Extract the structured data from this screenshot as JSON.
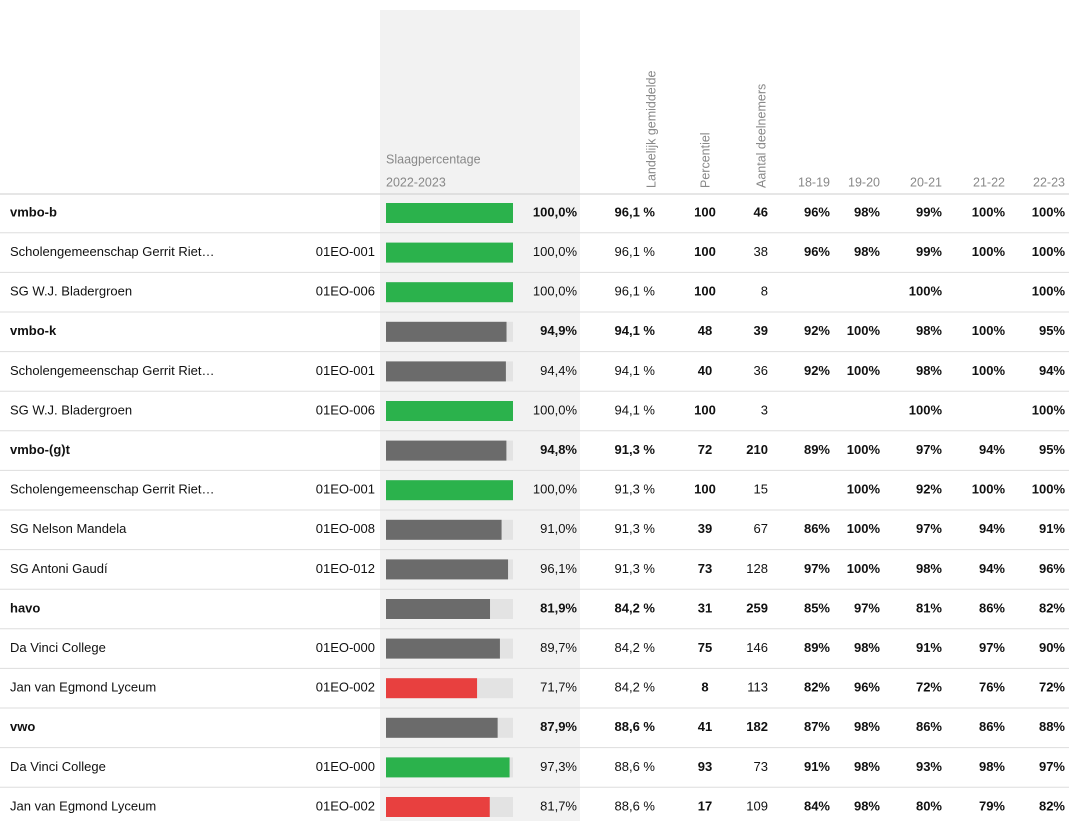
{
  "header": {
    "pass_title": "Slaagpercentage",
    "pass_period": "2022-2023",
    "average": "Landelijk gemiddelde",
    "percentile": "Percentiel",
    "participants": "Aantal deelnemers",
    "years": [
      "18-19",
      "19-20",
      "20-21",
      "21-22",
      "22-23"
    ]
  },
  "table": {
    "bar_range": [
      0,
      100
    ],
    "track_color": "#e3e3e3",
    "rows": [
      {
        "name": "vmbo-b",
        "group": true,
        "pass": 100.0,
        "pass_label": "100,0%",
        "bar_color": "#2bb24c",
        "average": "96,1 %",
        "percentile": 100,
        "percentile_color": "#2bb24c",
        "participants": 46,
        "years": [
          "96%",
          "98%",
          "99%",
          "100%",
          "100%"
        ],
        "year_colors": [
          "#e8403f",
          "#e8403f",
          "#e8403f",
          "#2bb24c",
          "#2bb24c"
        ]
      },
      {
        "name": "Scholengemeenschap Gerrit Riet…",
        "code": "01EO-001",
        "pass": 100.0,
        "pass_label": "100,0%",
        "bar_color": "#2bb24c",
        "average": "96,1 %",
        "percentile": 100,
        "percentile_color": "#2bb24c",
        "participants": 38,
        "years": [
          "96%",
          "98%",
          "99%",
          "100%",
          "100%"
        ],
        "year_colors": [
          "#e8403f",
          "#e8403f",
          "#e8403f",
          "#2bb24c",
          "#2bb24c"
        ]
      },
      {
        "name": "SG W.J. Bladergroen",
        "code": "01EO-006",
        "pass": 100.0,
        "pass_label": "100,0%",
        "bar_color": "#2bb24c",
        "average": "96,1 %",
        "percentile": 100,
        "percentile_color": "#2bb24c",
        "participants": 8,
        "years": [
          null,
          null,
          "100%",
          null,
          "100%"
        ],
        "year_colors": [
          null,
          null,
          "#2bb24c",
          null,
          "#2bb24c"
        ]
      },
      {
        "name": "vmbo-k",
        "group": true,
        "pass": 94.9,
        "pass_label": "94,9%",
        "bar_color": "#6b6b6b",
        "average": "94,1 %",
        "percentile": 48,
        "percentile_color": "#777777",
        "participants": 39,
        "years": [
          "92%",
          "100%",
          "98%",
          "100%",
          "95%"
        ],
        "year_colors": [
          "#e8403f",
          "#2bb24c",
          "#e8403f",
          "#2bb24c",
          "#777777"
        ]
      },
      {
        "name": "Scholengemeenschap Gerrit Riet…",
        "code": "01EO-001",
        "pass": 94.4,
        "pass_label": "94,4%",
        "bar_color": "#6b6b6b",
        "average": "94,1 %",
        "percentile": 40,
        "percentile_color": "#777777",
        "participants": 36,
        "years": [
          "92%",
          "100%",
          "98%",
          "100%",
          "94%"
        ],
        "year_colors": [
          "#e8403f",
          "#2bb24c",
          "#e8403f",
          "#2bb24c",
          "#777777"
        ]
      },
      {
        "name": "SG W.J. Bladergroen",
        "code": "01EO-006",
        "pass": 100.0,
        "pass_label": "100,0%",
        "bar_color": "#2bb24c",
        "average": "94,1 %",
        "percentile": 100,
        "percentile_color": "#2bb24c",
        "participants": 3,
        "years": [
          null,
          null,
          "100%",
          null,
          "100%"
        ],
        "year_colors": [
          null,
          null,
          "#2bb24c",
          null,
          "#2bb24c"
        ]
      },
      {
        "name": "vmbo-(g)t",
        "group": true,
        "pass": 94.8,
        "pass_label": "94,8%",
        "bar_color": "#6b6b6b",
        "average": "91,3 %",
        "percentile": 72,
        "percentile_color": "#777777",
        "participants": 210,
        "years": [
          "89%",
          "100%",
          "97%",
          "94%",
          "95%"
        ],
        "year_colors": [
          "#e8403f",
          "#2bb24c",
          "#777777",
          "#777777",
          "#777777"
        ]
      },
      {
        "name": "Scholengemeenschap Gerrit Riet…",
        "code": "01EO-001",
        "pass": 100.0,
        "pass_label": "100,0%",
        "bar_color": "#2bb24c",
        "average": "91,3 %",
        "percentile": 100,
        "percentile_color": "#2bb24c",
        "participants": 15,
        "years": [
          null,
          "100%",
          "92%",
          "100%",
          "100%"
        ],
        "year_colors": [
          null,
          "#2bb24c",
          "#e8403f",
          "#2bb24c",
          "#2bb24c"
        ]
      },
      {
        "name": "SG Nelson Mandela",
        "code": "01EO-008",
        "pass": 91.0,
        "pass_label": "91,0%",
        "bar_color": "#6b6b6b",
        "average": "91,3 %",
        "percentile": 39,
        "percentile_color": "#777777",
        "participants": 67,
        "years": [
          "86%",
          "100%",
          "97%",
          "94%",
          "91%"
        ],
        "year_colors": [
          "#e8403f",
          "#2bb24c",
          "#777777",
          "#777777",
          "#777777"
        ]
      },
      {
        "name": "SG Antoni Gaudí",
        "code": "01EO-012",
        "pass": 96.1,
        "pass_label": "96,1%",
        "bar_color": "#6b6b6b",
        "average": "91,3 %",
        "percentile": 73,
        "percentile_color": "#777777",
        "participants": 128,
        "years": [
          "97%",
          "100%",
          "98%",
          "94%",
          "96%"
        ],
        "year_colors": [
          "#777777",
          "#2bb24c",
          "#777777",
          "#777777",
          "#777777"
        ]
      },
      {
        "name": "havo",
        "group": true,
        "pass": 81.9,
        "pass_label": "81,9%",
        "bar_color": "#6b6b6b",
        "average": "84,2 %",
        "percentile": 31,
        "percentile_color": "#777777",
        "participants": 259,
        "years": [
          "85%",
          "97%",
          "81%",
          "86%",
          "82%"
        ],
        "year_colors": [
          "#e8403f",
          "#777777",
          "#e8403f",
          "#e8403f",
          "#777777"
        ]
      },
      {
        "name": "Da Vinci College",
        "code": "01EO-000",
        "pass": 89.7,
        "pass_label": "89,7%",
        "bar_color": "#6b6b6b",
        "average": "84,2 %",
        "percentile": 75,
        "percentile_color": "#777777",
        "participants": 146,
        "years": [
          "89%",
          "98%",
          "91%",
          "97%",
          "90%"
        ],
        "year_colors": [
          "#777777",
          "#777777",
          "#777777",
          "#2bb24c",
          "#777777"
        ]
      },
      {
        "name": "Jan van Egmond Lyceum",
        "code": "01EO-002",
        "pass": 71.7,
        "pass_label": "71,7%",
        "bar_color": "#e8403f",
        "average": "84,2 %",
        "percentile": 8,
        "percentile_color": "#e8403f",
        "participants": 113,
        "years": [
          "82%",
          "96%",
          "72%",
          "76%",
          "72%"
        ],
        "year_colors": [
          "#e8403f",
          "#e8403f",
          "#e8403f",
          "#e8403f",
          "#e8403f"
        ]
      },
      {
        "name": "vwo",
        "group": true,
        "pass": 87.9,
        "pass_label": "87,9%",
        "bar_color": "#6b6b6b",
        "average": "88,6 %",
        "percentile": 41,
        "percentile_color": "#777777",
        "participants": 182,
        "years": [
          "87%",
          "98%",
          "86%",
          "86%",
          "88%"
        ],
        "year_colors": [
          "#e8403f",
          "#e8403f",
          "#e8403f",
          "#e8403f",
          "#777777"
        ]
      },
      {
        "name": "Da Vinci College",
        "code": "01EO-000",
        "pass": 97.3,
        "pass_label": "97,3%",
        "bar_color": "#2bb24c",
        "average": "88,6 %",
        "percentile": 93,
        "percentile_color": "#2bb24c",
        "participants": 73,
        "years": [
          "91%",
          "98%",
          "93%",
          "98%",
          "97%"
        ],
        "year_colors": [
          "#777777",
          "#777777",
          "#777777",
          "#2bb24c",
          "#2bb24c"
        ]
      },
      {
        "name": "Jan van Egmond Lyceum",
        "code": "01EO-002",
        "pass": 81.7,
        "pass_label": "81,7%",
        "bar_color": "#e8403f",
        "average": "88,6 %",
        "percentile": 17,
        "percentile_color": "#e8403f",
        "participants": 109,
        "years": [
          "84%",
          "98%",
          "80%",
          "79%",
          "82%"
        ],
        "year_colors": [
          "#e8403f",
          "#e8403f",
          "#e8403f",
          "#e8403f",
          "#e8403f"
        ]
      }
    ]
  }
}
